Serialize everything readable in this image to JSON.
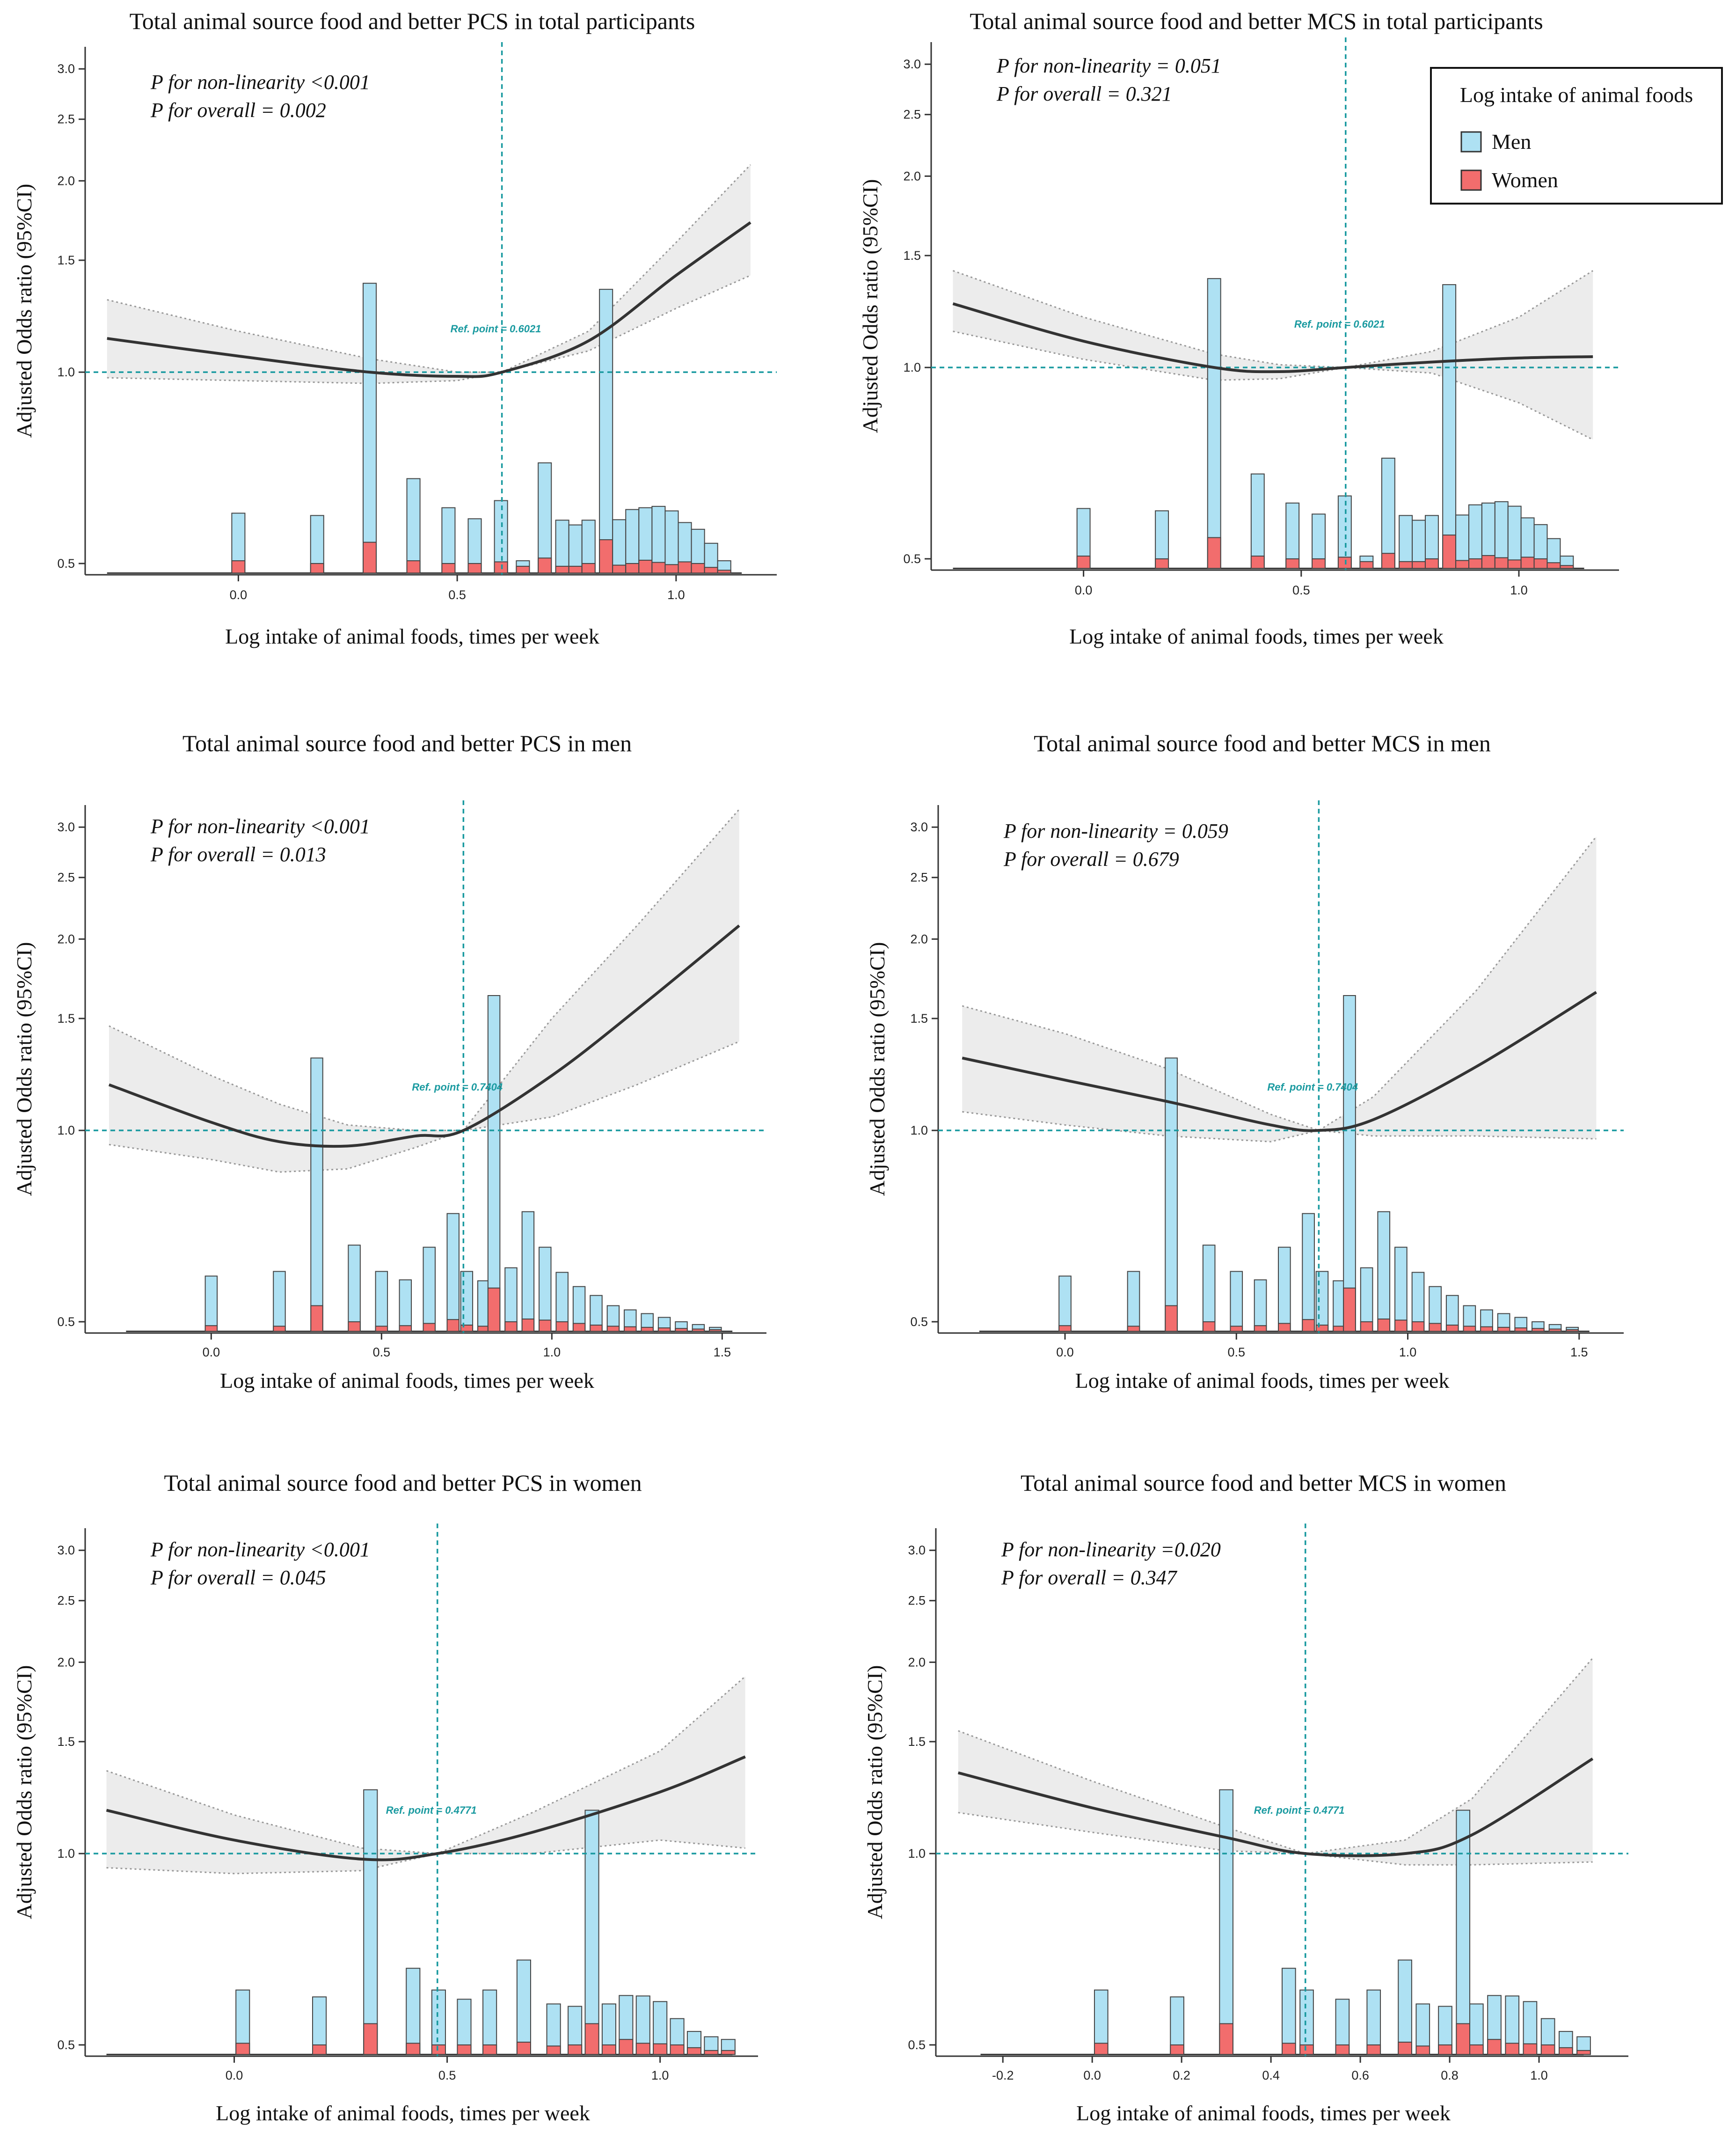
{
  "colors": {
    "men": "#aee1f3",
    "women": "#f26d6d",
    "ref_line": "#1a9aa0",
    "curve": "#333333",
    "band": "#ececec",
    "band_edge": "#999999"
  },
  "legend": {
    "title": "Log intake of animal foods",
    "entries": [
      {
        "label": "Men",
        "color": "#aee1f3"
      },
      {
        "label": "Women",
        "color": "#f26d6d"
      }
    ]
  },
  "chart_data": [
    {
      "type": "line",
      "title": "Total animal source food and better PCS in total participants",
      "xlabel": "Log intake of animal foods, times per week",
      "ylabel": "Adjusted Odds ratio (95%CI)",
      "p_nonlinearity": "P for non-linearity <0.001",
      "p_overall": "P for overall = 0.002",
      "ref_label": "Ref. point = 0.6021",
      "ref_x": 0.6021,
      "xlim": [
        -0.35,
        1.23
      ],
      "xticks": [
        0.0,
        0.5,
        1.0
      ],
      "xtick_labels": [
        "0.0",
        "0.5",
        "1.0"
      ],
      "ylim": [
        0.48,
        3.25
      ],
      "yticks": [
        0.5,
        1.0,
        1.5,
        2.0,
        2.5,
        3.0
      ],
      "ytick_labels": [
        "0.5",
        "1.0",
        "1.5",
        "2.0",
        "2.5",
        "3.0"
      ],
      "curve": {
        "x": [
          -0.3,
          0.0,
          0.3,
          0.5,
          0.6021,
          0.8,
          1.0,
          1.17
        ],
        "y": [
          1.13,
          1.06,
          1.0,
          0.985,
          1.0,
          1.12,
          1.42,
          1.72
        ]
      },
      "ci_upper": {
        "x": [
          -0.3,
          0.0,
          0.3,
          0.5,
          0.6021,
          0.8,
          1.0,
          1.17
        ],
        "y": [
          1.3,
          1.16,
          1.05,
          1.0,
          1.0,
          1.16,
          1.6,
          2.12
        ]
      },
      "ci_lower": {
        "x": [
          -0.3,
          0.0,
          0.3,
          0.5,
          0.6021,
          0.8,
          1.0,
          1.17
        ],
        "y": [
          0.98,
          0.97,
          0.96,
          0.97,
          1.0,
          1.08,
          1.26,
          1.42
        ]
      },
      "baseline": {
        "x0": -0.3,
        "x1": 1.15,
        "y": 0.483
      },
      "histogram": {
        "bin_width": 0.03,
        "x": [
          0.0,
          0.18,
          0.3,
          0.4,
          0.48,
          0.54,
          0.6,
          0.65,
          0.7,
          0.74,
          0.77,
          0.8,
          0.84,
          0.87,
          0.9,
          0.93,
          0.96,
          0.99,
          1.02,
          1.05,
          1.08,
          1.11
        ],
        "men": [
          0.6,
          0.595,
          1.38,
          0.68,
          0.612,
          0.588,
          0.628,
          0.505,
          0.72,
          0.585,
          0.575,
          0.585,
          1.35,
          0.586,
          0.608,
          0.612,
          0.615,
          0.605,
          0.58,
          0.566,
          0.538,
          0.505
        ],
        "women": [
          0.505,
          0.5,
          0.54,
          0.505,
          0.5,
          0.5,
          0.503,
          0.495,
          0.51,
          0.495,
          0.495,
          0.5,
          0.545,
          0.497,
          0.5,
          0.506,
          0.502,
          0.498,
          0.503,
          0.5,
          0.493,
          0.488
        ]
      }
    },
    {
      "type": "line",
      "title": "Total animal source food and better MCS in total participants",
      "xlabel": "Log intake of animal foods, times per week",
      "ylabel": "Adjusted Odds ratio (95%CI)",
      "p_nonlinearity": "P for non-linearity = 0.051",
      "p_overall": "P for overall = 0.321",
      "ref_label": "Ref. point = 0.6021",
      "ref_x": 0.6021,
      "xlim": [
        -0.35,
        1.23
      ],
      "xticks": [
        0.0,
        0.5,
        1.0
      ],
      "xtick_labels": [
        "0.0",
        "0.5",
        "1.0"
      ],
      "ylim": [
        0.48,
        3.25
      ],
      "yticks": [
        0.5,
        1.0,
        1.5,
        2.0,
        2.5,
        3.0
      ],
      "ytick_labels": [
        "0.5",
        "1.0",
        "1.5",
        "2.0",
        "2.5",
        "3.0"
      ],
      "curve": {
        "x": [
          -0.3,
          0.0,
          0.3,
          0.45,
          0.6021,
          0.8,
          1.0,
          1.17
        ],
        "y": [
          1.26,
          1.1,
          1.0,
          0.985,
          1.0,
          1.02,
          1.035,
          1.04
        ]
      },
      "ci_upper": {
        "x": [
          -0.3,
          0.0,
          0.3,
          0.45,
          0.6021,
          0.8,
          1.0,
          1.17
        ],
        "y": [
          1.42,
          1.2,
          1.05,
          1.01,
          1.0,
          1.06,
          1.2,
          1.42
        ]
      },
      "ci_lower": {
        "x": [
          -0.3,
          0.0,
          0.3,
          0.45,
          0.6021,
          0.8,
          1.0,
          1.17
        ],
        "y": [
          1.14,
          1.03,
          0.955,
          0.96,
          1.0,
          0.98,
          0.88,
          0.77
        ]
      },
      "baseline": {
        "x0": -0.3,
        "x1": 1.15,
        "y": 0.483
      },
      "histogram": {
        "bin_width": 0.03,
        "x": [
          0.0,
          0.18,
          0.3,
          0.4,
          0.48,
          0.54,
          0.6,
          0.65,
          0.7,
          0.74,
          0.77,
          0.8,
          0.84,
          0.87,
          0.9,
          0.93,
          0.96,
          0.99,
          1.02,
          1.05,
          1.08,
          1.11
        ],
        "men": [
          0.6,
          0.595,
          1.38,
          0.68,
          0.612,
          0.588,
          0.628,
          0.505,
          0.72,
          0.585,
          0.575,
          0.585,
          1.35,
          0.586,
          0.608,
          0.612,
          0.615,
          0.605,
          0.58,
          0.566,
          0.538,
          0.505
        ],
        "women": [
          0.505,
          0.5,
          0.54,
          0.505,
          0.5,
          0.5,
          0.503,
          0.495,
          0.51,
          0.495,
          0.495,
          0.5,
          0.545,
          0.497,
          0.5,
          0.506,
          0.502,
          0.498,
          0.503,
          0.5,
          0.493,
          0.488
        ]
      }
    },
    {
      "type": "line",
      "title": "Total animal source food and better PCS in men",
      "xlabel": "Log intake of animal foods, times per week",
      "ylabel": "Adjusted Odds ratio (95%CI)",
      "p_nonlinearity": "P for non-linearity <0.001",
      "p_overall": "P for overall = 0.013",
      "ref_label": "Ref. point = 0.7404",
      "ref_x": 0.7404,
      "xlim": [
        -0.37,
        1.63
      ],
      "xticks": [
        0.0,
        0.5,
        1.0,
        1.5
      ],
      "xtick_labels": [
        "0.0",
        "0.5",
        "1.0",
        "1.5"
      ],
      "ylim": [
        0.48,
        3.25
      ],
      "yticks": [
        0.5,
        1.0,
        1.5,
        2.0,
        2.5,
        3.0
      ],
      "ytick_labels": [
        "0.5",
        "1.0",
        "1.5",
        "2.0",
        "2.5",
        "3.0"
      ],
      "curve": {
        "x": [
          -0.3,
          0.0,
          0.2,
          0.4,
          0.6,
          0.7404,
          1.0,
          1.25,
          1.55
        ],
        "y": [
          1.18,
          1.03,
          0.96,
          0.945,
          0.98,
          1.0,
          1.22,
          1.55,
          2.1
        ]
      },
      "ci_upper": {
        "x": [
          -0.3,
          0.0,
          0.2,
          0.4,
          0.6,
          0.7404,
          1.0,
          1.25,
          1.55
        ],
        "y": [
          1.46,
          1.22,
          1.1,
          1.02,
          1.0,
          1.0,
          1.5,
          2.1,
          3.2
        ]
      },
      "ci_lower": {
        "x": [
          -0.3,
          0.0,
          0.2,
          0.4,
          0.6,
          0.7404,
          1.0,
          1.25,
          1.55
        ],
        "y": [
          0.95,
          0.9,
          0.86,
          0.87,
          0.94,
          1.0,
          1.05,
          1.18,
          1.38
        ]
      },
      "baseline": {
        "x0": -0.25,
        "x1": 1.53,
        "y": 0.483
      },
      "histogram": {
        "bin_width": 0.035,
        "x": [
          0.0,
          0.2,
          0.31,
          0.42,
          0.5,
          0.57,
          0.64,
          0.71,
          0.75,
          0.8,
          0.83,
          0.88,
          0.93,
          0.98,
          1.03,
          1.08,
          1.13,
          1.18,
          1.23,
          1.28,
          1.33,
          1.38,
          1.43,
          1.48
        ],
        "men": [
          0.59,
          0.6,
          1.3,
          0.66,
          0.6,
          0.582,
          0.655,
          0.74,
          0.6,
          0.58,
          1.63,
          0.608,
          0.745,
          0.655,
          0.598,
          0.568,
          0.55,
          0.53,
          0.522,
          0.515,
          0.508,
          0.5,
          0.495,
          0.49
        ],
        "women": [
          0.493,
          0.492,
          0.53,
          0.5,
          0.492,
          0.493,
          0.497,
          0.504,
          0.494,
          0.492,
          0.565,
          0.5,
          0.505,
          0.503,
          0.5,
          0.497,
          0.494,
          0.492,
          0.491,
          0.49,
          0.489,
          0.488,
          0.487,
          0.486
        ]
      }
    },
    {
      "type": "line",
      "title": "Total animal source food and better MCS in men",
      "xlabel": "Log intake of animal foods, times per week",
      "ylabel": "Adjusted Odds ratio (95%CI)",
      "p_nonlinearity": "P for non-linearity = 0.059",
      "p_overall": "P for overall = 0.679",
      "ref_label": "Ref. point = 0.7404",
      "ref_x": 0.7404,
      "xlim": [
        -0.37,
        1.63
      ],
      "xticks": [
        0.0,
        0.5,
        1.0,
        1.5
      ],
      "xtick_labels": [
        "0.0",
        "0.5",
        "1.0",
        "1.5"
      ],
      "ylim": [
        0.48,
        3.25
      ],
      "yticks": [
        0.5,
        1.0,
        1.5,
        2.0,
        2.5,
        3.0
      ],
      "ytick_labels": [
        "0.5",
        "1.0",
        "1.5",
        "2.0",
        "2.5",
        "3.0"
      ],
      "curve": {
        "x": [
          -0.3,
          0.0,
          0.3,
          0.6,
          0.7404,
          0.9,
          1.2,
          1.55
        ],
        "y": [
          1.3,
          1.2,
          1.11,
          1.02,
          1.0,
          1.04,
          1.26,
          1.65
        ]
      },
      "ci_upper": {
        "x": [
          -0.3,
          0.0,
          0.3,
          0.6,
          0.7404,
          0.9,
          1.2,
          1.55
        ],
        "y": [
          1.57,
          1.42,
          1.25,
          1.06,
          1.0,
          1.13,
          1.66,
          2.9
        ]
      },
      "ci_lower": {
        "x": [
          -0.3,
          0.0,
          0.3,
          0.6,
          0.7404,
          0.9,
          1.2,
          1.55
        ],
        "y": [
          1.07,
          1.02,
          0.98,
          0.96,
          1.0,
          0.98,
          0.98,
          0.97
        ]
      },
      "baseline": {
        "x0": -0.25,
        "x1": 1.53,
        "y": 0.483
      },
      "histogram": {
        "bin_width": 0.035,
        "x": [
          0.0,
          0.2,
          0.31,
          0.42,
          0.5,
          0.57,
          0.64,
          0.71,
          0.75,
          0.8,
          0.83,
          0.88,
          0.93,
          0.98,
          1.03,
          1.08,
          1.13,
          1.18,
          1.23,
          1.28,
          1.33,
          1.38,
          1.43,
          1.48
        ],
        "men": [
          0.59,
          0.6,
          1.3,
          0.66,
          0.6,
          0.582,
          0.655,
          0.74,
          0.6,
          0.58,
          1.63,
          0.608,
          0.745,
          0.655,
          0.598,
          0.568,
          0.55,
          0.53,
          0.522,
          0.515,
          0.508,
          0.5,
          0.495,
          0.49
        ],
        "women": [
          0.493,
          0.492,
          0.53,
          0.5,
          0.492,
          0.493,
          0.497,
          0.504,
          0.494,
          0.492,
          0.565,
          0.5,
          0.505,
          0.503,
          0.5,
          0.497,
          0.494,
          0.492,
          0.491,
          0.49,
          0.489,
          0.488,
          0.487,
          0.486
        ]
      }
    },
    {
      "type": "line",
      "title": "Total animal source food and better PCS in women",
      "xlabel": "Log intake of animal foods, times per week",
      "ylabel": "Adjusted Odds ratio (95%CI)",
      "p_nonlinearity": "P for non-linearity <0.001",
      "p_overall": "P for overall = 0.045",
      "ref_label": "Ref. point = 0.4771",
      "ref_x": 0.4771,
      "xlim": [
        -0.35,
        1.23
      ],
      "xticks": [
        0.0,
        0.5,
        1.0
      ],
      "xtick_labels": [
        "0.0",
        "0.5",
        "1.0"
      ],
      "ylim": [
        0.48,
        3.25
      ],
      "yticks": [
        0.5,
        1.0,
        1.5,
        2.0,
        2.5,
        3.0
      ],
      "ytick_labels": [
        "0.5",
        "1.0",
        "1.5",
        "2.0",
        "2.5",
        "3.0"
      ],
      "curve": {
        "x": [
          -0.3,
          0.0,
          0.3,
          0.4771,
          0.7,
          1.0,
          1.2
        ],
        "y": [
          1.17,
          1.05,
          0.98,
          1.0,
          1.08,
          1.25,
          1.42
        ]
      },
      "ci_upper": {
        "x": [
          -0.3,
          0.0,
          0.3,
          0.4771,
          0.7,
          1.0,
          1.2
        ],
        "y": [
          1.35,
          1.15,
          1.02,
          1.0,
          1.16,
          1.45,
          1.9
        ]
      },
      "ci_lower": {
        "x": [
          -0.3,
          0.0,
          0.3,
          0.4771,
          0.7,
          1.0,
          1.2
        ],
        "y": [
          0.95,
          0.93,
          0.94,
          1.0,
          1.0,
          1.05,
          1.02
        ]
      },
      "baseline": {
        "x0": -0.3,
        "x1": 1.17,
        "y": 0.483
      },
      "histogram": {
        "bin_width": 0.032,
        "x": [
          0.02,
          0.2,
          0.32,
          0.42,
          0.48,
          0.54,
          0.6,
          0.68,
          0.75,
          0.8,
          0.84,
          0.88,
          0.92,
          0.96,
          1.0,
          1.04,
          1.08,
          1.12,
          1.16
        ],
        "men": [
          0.61,
          0.595,
          1.26,
          0.66,
          0.61,
          0.59,
          0.61,
          0.68,
          0.58,
          0.575,
          1.17,
          0.58,
          0.598,
          0.597,
          0.585,
          0.55,
          0.525,
          0.515,
          0.51
        ],
        "women": [
          0.503,
          0.5,
          0.54,
          0.503,
          0.5,
          0.5,
          0.5,
          0.505,
          0.498,
          0.5,
          0.54,
          0.5,
          0.51,
          0.503,
          0.502,
          0.5,
          0.495,
          0.49,
          0.49
        ]
      }
    },
    {
      "type": "line",
      "title": "Total animal source food and better MCS in women",
      "xlabel": "Log intake of animal foods, times per week",
      "ylabel": "Adjusted Odds ratio (95%CI)",
      "p_nonlinearity": "P for non-linearity =0.020",
      "p_overall": "P for overall = 0.347",
      "ref_label": "Ref. point = 0.4771",
      "ref_x": 0.4771,
      "xlim": [
        -0.35,
        1.2
      ],
      "xticks": [
        -0.2,
        0.0,
        0.2,
        0.4,
        0.6,
        0.8,
        1.0
      ],
      "xtick_labels": [
        "-0.2",
        "0.0",
        "0.2",
        "0.4",
        "0.6",
        "0.8",
        "1.0"
      ],
      "ylim": [
        0.48,
        3.25
      ],
      "yticks": [
        0.5,
        1.0,
        1.5,
        2.0,
        2.5,
        3.0
      ],
      "ytick_labels": [
        "0.5",
        "1.0",
        "1.5",
        "2.0",
        "2.5",
        "3.0"
      ],
      "curve": {
        "x": [
          -0.3,
          0.0,
          0.3,
          0.4771,
          0.7,
          0.85,
          1.12
        ],
        "y": [
          1.34,
          1.18,
          1.06,
          1.0,
          1.0,
          1.07,
          1.41
        ]
      },
      "ci_upper": {
        "x": [
          -0.3,
          0.0,
          0.3,
          0.4771,
          0.7,
          0.85,
          1.12
        ],
        "y": [
          1.56,
          1.3,
          1.1,
          1.0,
          1.05,
          1.22,
          2.03
        ]
      },
      "ci_lower": {
        "x": [
          -0.3,
          0.0,
          0.3,
          0.4771,
          0.7,
          0.85,
          1.12
        ],
        "y": [
          1.16,
          1.08,
          1.01,
          1.0,
          0.96,
          0.96,
          0.97
        ]
      },
      "baseline": {
        "x0": -0.25,
        "x1": 1.1,
        "y": 0.483
      },
      "histogram": {
        "bin_width": 0.03,
        "x": [
          0.02,
          0.19,
          0.3,
          0.44,
          0.48,
          0.56,
          0.63,
          0.7,
          0.74,
          0.79,
          0.83,
          0.86,
          0.9,
          0.94,
          0.98,
          1.02,
          1.06,
          1.1
        ],
        "men": [
          0.61,
          0.595,
          1.26,
          0.66,
          0.61,
          0.59,
          0.61,
          0.68,
          0.58,
          0.575,
          1.17,
          0.58,
          0.598,
          0.597,
          0.585,
          0.55,
          0.525,
          0.515
        ],
        "women": [
          0.503,
          0.5,
          0.54,
          0.503,
          0.5,
          0.5,
          0.5,
          0.505,
          0.498,
          0.5,
          0.54,
          0.5,
          0.51,
          0.503,
          0.502,
          0.5,
          0.495,
          0.49
        ]
      }
    }
  ]
}
